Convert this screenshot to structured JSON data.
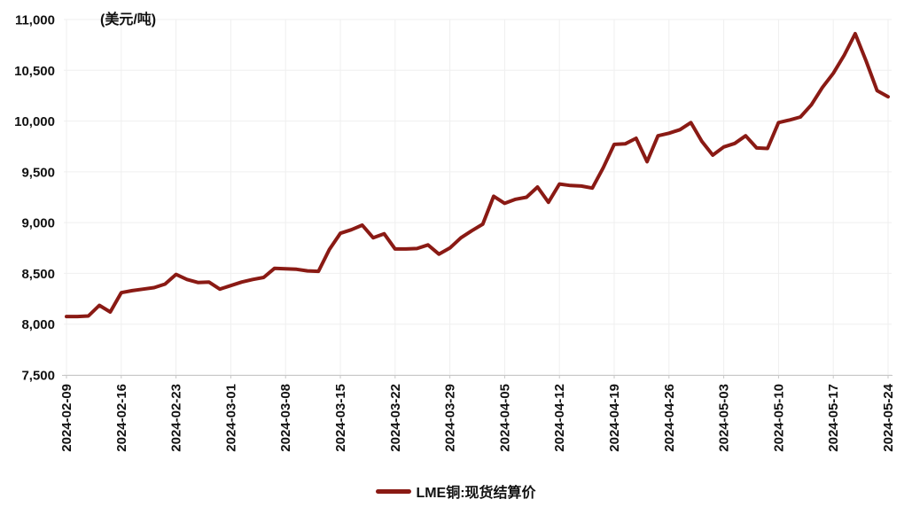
{
  "labels": {
    "unit_label": "(美元/吨)"
  },
  "legend": {
    "label": "LME铜:现货结算价",
    "color": "#8a1a14"
  },
  "chart_data": {
    "type": "line",
    "title": "",
    "xlabel": "",
    "ylabel": "(美元/吨)",
    "ylim": [
      7500,
      11000
    ],
    "grid": true,
    "legend_position": "bottom",
    "y_ticks": [
      7500,
      8000,
      8500,
      9000,
      9500,
      10000,
      10500,
      11000
    ],
    "y_tick_labels": [
      "7,500",
      "8,000",
      "8,500",
      "9,000",
      "9,500",
      "10,000",
      "10,500",
      "11,000"
    ],
    "x_tick_labels": [
      "2024-02-09",
      "2024-02-16",
      "2024-02-23",
      "2024-03-01",
      "2024-03-08",
      "2024-03-15",
      "2024-03-22",
      "2024-03-29",
      "2024-04-05",
      "2024-04-12",
      "2024-04-19",
      "2024-04-26",
      "2024-05-03",
      "2024-05-10",
      "2024-05-17",
      "2024-05-24"
    ],
    "x_tick_every": 5,
    "series": [
      {
        "name": "LME铜:现货结算价",
        "color": "#8a1a14",
        "x": [
          "2024-02-09",
          "2024-02-12",
          "2024-02-13",
          "2024-02-14",
          "2024-02-15",
          "2024-02-16",
          "2024-02-19",
          "2024-02-20",
          "2024-02-21",
          "2024-02-22",
          "2024-02-23",
          "2024-02-26",
          "2024-02-27",
          "2024-02-28",
          "2024-02-29",
          "2024-03-01",
          "2024-03-04",
          "2024-03-05",
          "2024-03-06",
          "2024-03-07",
          "2024-03-08",
          "2024-03-11",
          "2024-03-12",
          "2024-03-13",
          "2024-03-14",
          "2024-03-15",
          "2024-03-18",
          "2024-03-19",
          "2024-03-20",
          "2024-03-21",
          "2024-03-22",
          "2024-03-25",
          "2024-03-26",
          "2024-03-27",
          "2024-03-28",
          "2024-03-29",
          "2024-04-01",
          "2024-04-02",
          "2024-04-03",
          "2024-04-04",
          "2024-04-05",
          "2024-04-08",
          "2024-04-09",
          "2024-04-10",
          "2024-04-11",
          "2024-04-12",
          "2024-04-15",
          "2024-04-16",
          "2024-04-17",
          "2024-04-18",
          "2024-04-19",
          "2024-04-22",
          "2024-04-23",
          "2024-04-24",
          "2024-04-25",
          "2024-04-26",
          "2024-04-29",
          "2024-04-30",
          "2024-05-01",
          "2024-05-02",
          "2024-05-03",
          "2024-05-06",
          "2024-05-07",
          "2024-05-08",
          "2024-05-09",
          "2024-05-10",
          "2024-05-13",
          "2024-05-14",
          "2024-05-15",
          "2024-05-16",
          "2024-05-17",
          "2024-05-20",
          "2024-05-21",
          "2024-05-22",
          "2024-05-23",
          "2024-05-24"
        ],
        "values": [
          8075,
          8075,
          8080,
          8185,
          8120,
          8310,
          8330,
          8345,
          8360,
          8395,
          8490,
          8440,
          8410,
          8415,
          8345,
          8380,
          8415,
          8440,
          8460,
          8550,
          8545,
          8540,
          8525,
          8520,
          8735,
          8895,
          8930,
          8975,
          8850,
          8890,
          8740,
          8740,
          8745,
          8780,
          8690,
          8750,
          8850,
          8920,
          8985,
          9260,
          9190,
          9230,
          9250,
          9350,
          9200,
          9380,
          9365,
          9360,
          9340,
          9540,
          9770,
          9775,
          9830,
          9600,
          9855,
          9880,
          9915,
          9985,
          9800,
          9665,
          9745,
          9780,
          9855,
          9735,
          9730,
          9985,
          10010,
          10040,
          10160,
          10330,
          10470,
          10650,
          10860,
          10590,
          10300,
          10240
        ]
      }
    ]
  },
  "style": {
    "grid_color": "#efefef",
    "axis_color": "#c6c6c6",
    "text_color": "#111111",
    "background": "#ffffff"
  }
}
